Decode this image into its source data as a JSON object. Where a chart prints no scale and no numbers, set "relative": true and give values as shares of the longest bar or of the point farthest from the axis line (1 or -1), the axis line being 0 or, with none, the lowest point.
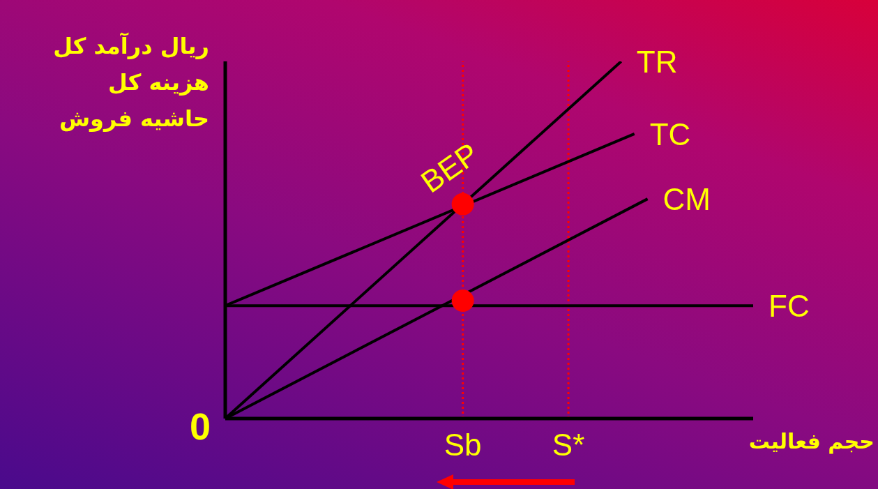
{
  "chart_data": {
    "type": "line",
    "relative": true,
    "grid": false,
    "legend": false,
    "ylabel": "ریال درآمد کل\nهزینه کل\nحاشیه فروش",
    "xlabel": "حجم فعالیت",
    "categories": [
      null,
      null,
      null,
      null,
      null,
      null,
      null,
      null,
      null,
      null,
      null,
      null,
      null,
      null,
      null,
      null,
      null,
      null,
      "Sb",
      null,
      null,
      null,
      null,
      null,
      null,
      null,
      "S*",
      null,
      null,
      null,
      null,
      null,
      null,
      null,
      null,
      null,
      null,
      null,
      null,
      null,
      null
    ],
    "series": [
      {
        "name": "TR",
        "color": "#000000",
        "values": [
          0,
          null,
          null,
          null,
          null,
          null,
          null,
          null,
          null,
          null,
          null,
          null,
          null,
          null,
          null,
          null,
          null,
          null,
          null,
          null,
          null,
          null,
          null,
          null,
          null,
          null,
          null,
          null,
          null,
          null,
          1,
          null,
          null,
          null,
          null,
          null,
          null,
          null,
          null,
          null,
          null
        ]
      },
      {
        "name": "TC",
        "color": "#000000",
        "values": [
          0.316,
          null,
          null,
          null,
          null,
          null,
          null,
          null,
          null,
          null,
          null,
          null,
          null,
          null,
          null,
          null,
          null,
          null,
          null,
          null,
          null,
          null,
          null,
          null,
          null,
          null,
          null,
          null,
          null,
          null,
          null,
          0.797,
          null,
          null,
          null,
          null,
          null,
          null,
          null,
          null,
          null
        ]
      },
      {
        "name": "CM",
        "color": "#000000",
        "values": [
          0,
          null,
          null,
          null,
          null,
          null,
          null,
          null,
          null,
          null,
          null,
          null,
          null,
          null,
          null,
          null,
          null,
          null,
          null,
          null,
          null,
          null,
          null,
          null,
          null,
          null,
          null,
          null,
          null,
          null,
          null,
          null,
          0.615,
          null,
          null,
          null,
          null,
          null,
          null,
          null,
          null
        ]
      },
      {
        "name": "FC",
        "color": "#000000",
        "values": [
          0.316,
          null,
          null,
          null,
          null,
          null,
          null,
          null,
          null,
          null,
          null,
          null,
          null,
          null,
          null,
          null,
          null,
          null,
          null,
          null,
          null,
          null,
          null,
          null,
          null,
          null,
          null,
          null,
          null,
          null,
          null,
          null,
          null,
          null,
          null,
          null,
          null,
          null,
          null,
          null,
          0.316
        ]
      },
      {
        "type": "scatter",
        "color": "#ff0000",
        "marker": "circle",
        "x": [
          "Sb",
          "Sb"
        ],
        "values": [
          0.6,
          0.33
        ]
      }
    ],
    "ref_lines": [
      {
        "axis": "x",
        "value": "Sb",
        "color": "#ff0000",
        "line_style": "dotted"
      },
      {
        "axis": "x",
        "value": "S*",
        "color": "#ff0000",
        "line_style": "dotted"
      }
    ],
    "annotations": [
      {
        "text": "BEP",
        "x": "Sb",
        "y": 0.6
      },
      "0"
    ]
  }
}
